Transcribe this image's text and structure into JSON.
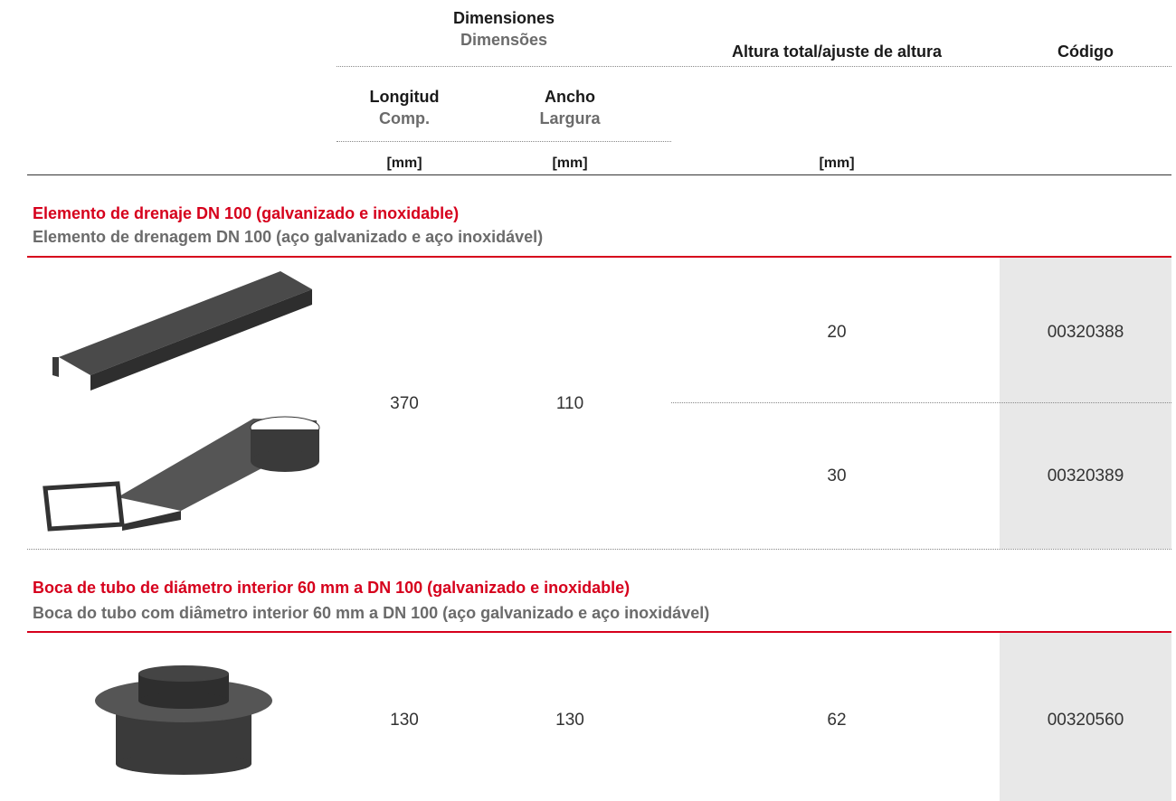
{
  "header": {
    "dimensions": {
      "title": "Dimensiones",
      "subtitle": "Dimensões"
    },
    "height": "Altura total/ajuste de altura",
    "code": "Código",
    "length": {
      "title": "Longitud",
      "subtitle": "Comp."
    },
    "width": {
      "title": "Ancho",
      "subtitle": "Largura"
    },
    "units": [
      "[mm]",
      "[mm]",
      "[mm]"
    ]
  },
  "sections": [
    {
      "title": "Elemento de drenaje DN 100 (galvanizado e inoxidable)",
      "subtitle": "Elemento de drenagem DN 100 (aço galvanizado e aço inoxidável)",
      "length": 370,
      "width": 110,
      "rows": [
        {
          "height": 20,
          "code": "00320388"
        },
        {
          "height": 30,
          "code": "00320389"
        }
      ]
    },
    {
      "title": "Boca de tubo de diámetro interior 60 mm a DN 100 (galvanizado e inoxidable)",
      "subtitle": "Boca do tubo com diâmetro interior 60 mm a DN 100 (aço galvanizado e aço inoxidável)",
      "length": 130,
      "width": 130,
      "rows": [
        {
          "height": 62,
          "code": "00320560"
        }
      ]
    }
  ]
}
